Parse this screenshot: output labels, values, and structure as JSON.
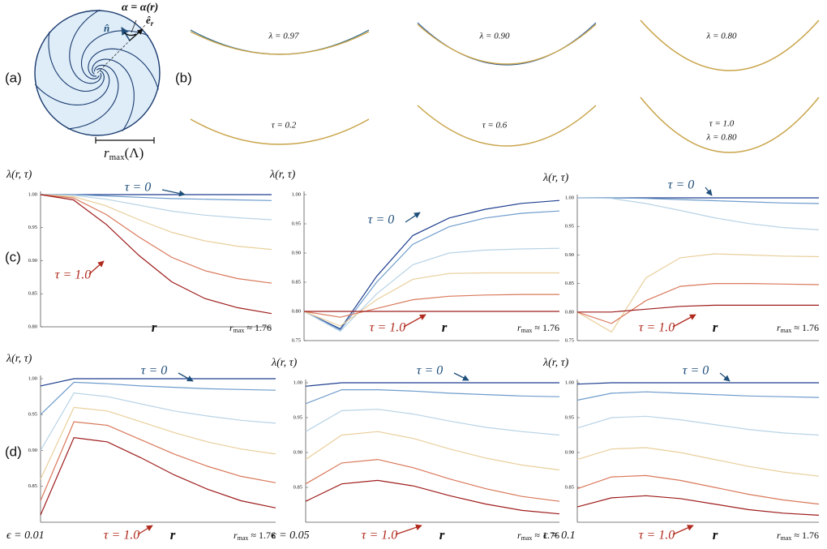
{
  "panel_labels": [
    "(a)",
    "(b)",
    "(c)",
    "(d)"
  ],
  "diagram": {
    "alpha_label": "α = α(r)",
    "n_label": "n̂",
    "e_label": "ê",
    "e_sub": "r",
    "rmax_label": [
      "r",
      "max",
      "(Λ)"
    ]
  },
  "shapes": [
    {
      "label": "λ = 0.97"
    },
    {
      "label": "λ = 0.90"
    },
    {
      "label": "λ = 0.80"
    },
    {
      "label": "τ = 0.2"
    },
    {
      "label": "τ = 0.6"
    },
    {
      "label": "τ = 1.0"
    },
    {
      "label": "λ = 0.80"
    }
  ],
  "chart_data": [
    {
      "type": "line",
      "ylabel": "λ(r, τ)",
      "x_label": "r",
      "xmax_label": [
        "r",
        "max",
        " ≈ 1.76"
      ],
      "x": [
        0,
        0.25,
        0.5,
        0.75,
        1.0,
        1.25,
        1.5,
        1.76
      ],
      "xlim": [
        0,
        1.76
      ],
      "ylim": [
        0.8,
        1.0
      ],
      "yticks": [
        {
          "value": 0.8,
          "label": "0.80"
        },
        0.85,
        {
          "value": 0.9,
          "label": "0.90"
        },
        0.95,
        {
          "value": 1,
          "label": "1.00"
        }
      ],
      "annotations": [
        {
          "text": "τ = 0",
          "color": "#1f4f7a"
        },
        {
          "text": "τ = 1.0",
          "color": "#b02a1e"
        }
      ],
      "series": [
        {
          "color": "#1f3f8f",
          "values": [
            1,
            1,
            1,
            1,
            1,
            1,
            1,
            1
          ]
        },
        {
          "color": "#6e9ccc",
          "values": [
            1,
            1,
            0.998,
            0.996,
            0.994,
            0.993,
            0.992,
            0.991
          ]
        },
        {
          "color": "#b8d3e6",
          "values": [
            1,
            0.999,
            0.993,
            0.984,
            0.975,
            0.969,
            0.965,
            0.962
          ]
        },
        {
          "color": "#e9cf9c",
          "values": [
            1,
            0.997,
            0.983,
            0.962,
            0.943,
            0.93,
            0.922,
            0.917
          ]
        },
        {
          "color": "#d9785a",
          "values": [
            1,
            0.995,
            0.97,
            0.936,
            0.905,
            0.885,
            0.873,
            0.866
          ]
        },
        {
          "color": "#9e1b1b",
          "values": [
            1,
            0.992,
            0.955,
            0.908,
            0.868,
            0.843,
            0.829,
            0.82
          ]
        }
      ]
    },
    {
      "type": "line",
      "ylabel": "λ(r, τ)",
      "x_label": "r",
      "xmax_label": [
        "r",
        "max",
        " ≈ 1.76"
      ],
      "x": [
        0,
        0.25,
        0.5,
        0.75,
        1.0,
        1.25,
        1.5,
        1.76
      ],
      "xlim": [
        0,
        1.76
      ],
      "ylim": [
        0.75,
        1.0
      ],
      "yticks": [
        0.75,
        {
          "value": 0.8,
          "label": "0.80"
        },
        0.85,
        {
          "value": 0.9,
          "label": "0.90"
        },
        0.95,
        {
          "value": 1,
          "label": "1.00"
        }
      ],
      "annotations": [
        {
          "text": "τ = 0",
          "color": "#1f4f7a"
        },
        {
          "text": "τ = 1.0",
          "color": "#b02a1e"
        }
      ],
      "series": [
        {
          "color": "#1f3f8f",
          "values": [
            0.8,
            0.77,
            0.86,
            0.93,
            0.96,
            0.975,
            0.985,
            0.99
          ]
        },
        {
          "color": "#6e9ccc",
          "values": [
            0.8,
            0.768,
            0.85,
            0.915,
            0.945,
            0.96,
            0.968,
            0.972
          ]
        },
        {
          "color": "#b8d3e6",
          "values": [
            0.8,
            0.766,
            0.83,
            0.88,
            0.9,
            0.905,
            0.907,
            0.908
          ]
        },
        {
          "color": "#e9cf9c",
          "values": [
            0.8,
            0.775,
            0.82,
            0.855,
            0.865,
            0.866,
            0.866,
            0.866
          ]
        },
        {
          "color": "#d9785a",
          "values": [
            0.8,
            0.79,
            0.805,
            0.82,
            0.826,
            0.828,
            0.829,
            0.829
          ]
        },
        {
          "color": "#9e1b1b",
          "values": [
            0.8,
            0.8,
            0.8,
            0.8,
            0.8,
            0.8,
            0.8,
            0.8
          ]
        }
      ]
    },
    {
      "type": "line",
      "ylabel": "λ(r, τ)",
      "x_label": "r",
      "xmax_label": [
        "r",
        "max",
        " ≈ 1.76"
      ],
      "x": [
        0,
        0.25,
        0.5,
        0.75,
        1.0,
        1.25,
        1.5,
        1.76
      ],
      "xlim": [
        0,
        1.76
      ],
      "ylim": [
        0.75,
        1.0
      ],
      "yticks": [
        0.75,
        {
          "value": 0.8,
          "label": "0.80"
        },
        0.85,
        {
          "value": 0.9,
          "label": "0.90"
        },
        0.95,
        {
          "value": 1,
          "label": "1.00"
        }
      ],
      "annotations": [
        {
          "text": "τ = 0",
          "color": "#1f4f7a"
        },
        {
          "text": "τ = 1.0",
          "color": "#b02a1e"
        }
      ],
      "series": [
        {
          "color": "#1f3f8f",
          "values": [
            1,
            1,
            1,
            1,
            1,
            1,
            1,
            1
          ]
        },
        {
          "color": "#6e9ccc",
          "values": [
            1,
            1,
            0.999,
            0.997,
            0.995,
            0.993,
            0.991,
            0.99
          ]
        },
        {
          "color": "#b8d3e6",
          "values": [
            1,
            0.999,
            0.99,
            0.978,
            0.965,
            0.955,
            0.948,
            0.944
          ]
        },
        {
          "color": "#e9cf9c",
          "values": [
            0.8,
            0.765,
            0.86,
            0.895,
            0.902,
            0.9,
            0.898,
            0.897
          ]
        },
        {
          "color": "#d9785a",
          "values": [
            0.8,
            0.78,
            0.82,
            0.845,
            0.85,
            0.85,
            0.849,
            0.848
          ]
        },
        {
          "color": "#9e1b1b",
          "values": [
            0.8,
            0.8,
            0.805,
            0.81,
            0.812,
            0.812,
            0.812,
            0.812
          ]
        }
      ]
    },
    {
      "type": "line",
      "ylabel": "λ(r, τ)",
      "x_label": "r",
      "xmax_label": [
        "r",
        "max",
        " ≈ 1.76"
      ],
      "epsilon_label": "ϵ = 0.01",
      "x": [
        0,
        0.25,
        0.5,
        0.75,
        1.0,
        1.25,
        1.5,
        1.76
      ],
      "xlim": [
        0,
        1.76
      ],
      "ylim": [
        0.8,
        1.0
      ],
      "yticks": [
        0.85,
        {
          "value": 0.9,
          "label": "0.90"
        },
        0.95,
        {
          "value": 1,
          "label": "1.00"
        }
      ],
      "annotations": [
        {
          "text": "τ = 0",
          "color": "#1f4f7a"
        },
        {
          "text": "τ = 1.0",
          "color": "#b02a1e"
        }
      ],
      "series": [
        {
          "color": "#1f3f8f",
          "values": [
            0.99,
            1,
            1,
            1,
            1,
            1,
            1,
            1
          ]
        },
        {
          "color": "#6e9ccc",
          "values": [
            0.95,
            0.995,
            0.993,
            0.99,
            0.988,
            0.986,
            0.985,
            0.984
          ]
        },
        {
          "color": "#b8d3e6",
          "values": [
            0.9,
            0.98,
            0.975,
            0.965,
            0.955,
            0.948,
            0.942,
            0.938
          ]
        },
        {
          "color": "#e9cf9c",
          "values": [
            0.86,
            0.96,
            0.955,
            0.94,
            0.925,
            0.912,
            0.902,
            0.895
          ]
        },
        {
          "color": "#d9785a",
          "values": [
            0.83,
            0.94,
            0.935,
            0.915,
            0.895,
            0.878,
            0.864,
            0.855
          ]
        },
        {
          "color": "#9e1b1b",
          "values": [
            0.81,
            0.918,
            0.912,
            0.89,
            0.866,
            0.846,
            0.83,
            0.82
          ]
        }
      ]
    },
    {
      "type": "line",
      "ylabel": "λ(r, τ)",
      "x_label": "r",
      "xmax_label": [
        "r",
        "max",
        " ≈ 1.76"
      ],
      "epsilon_label": "ϵ = 0.05",
      "x": [
        0,
        0.25,
        0.5,
        0.75,
        1.0,
        1.25,
        1.5,
        1.76
      ],
      "xlim": [
        0,
        1.76
      ],
      "ylim": [
        0.8,
        1.0
      ],
      "yticks": [
        0.85,
        {
          "value": 0.9,
          "label": "0.90"
        },
        0.95,
        {
          "value": 1,
          "label": "1.00"
        }
      ],
      "annotations": [
        {
          "text": "τ = 0",
          "color": "#1f4f7a"
        },
        {
          "text": "τ = 1.0",
          "color": "#b02a1e"
        }
      ],
      "series": [
        {
          "color": "#1f3f8f",
          "values": [
            0.995,
            1,
            1,
            1,
            1,
            1,
            1,
            1
          ]
        },
        {
          "color": "#6e9ccc",
          "values": [
            0.97,
            0.99,
            0.99,
            0.988,
            0.985,
            0.983,
            0.981,
            0.98
          ]
        },
        {
          "color": "#b8d3e6",
          "values": [
            0.93,
            0.96,
            0.962,
            0.955,
            0.945,
            0.936,
            0.93,
            0.925
          ]
        },
        {
          "color": "#e9cf9c",
          "values": [
            0.89,
            0.925,
            0.93,
            0.92,
            0.905,
            0.892,
            0.882,
            0.875
          ]
        },
        {
          "color": "#d9785a",
          "values": [
            0.855,
            0.885,
            0.89,
            0.878,
            0.862,
            0.848,
            0.837,
            0.83
          ]
        },
        {
          "color": "#9e1b1b",
          "values": [
            0.83,
            0.855,
            0.86,
            0.852,
            0.838,
            0.826,
            0.817,
            0.812
          ]
        }
      ]
    },
    {
      "type": "line",
      "ylabel": "λ(r, τ)",
      "x_label": "r",
      "xmax_label": [
        "r",
        "max",
        " ≈ 1.76"
      ],
      "epsilon_label": "ϵ = 0.1",
      "x": [
        0,
        0.25,
        0.5,
        0.75,
        1.0,
        1.25,
        1.5,
        1.76
      ],
      "xlim": [
        0,
        1.76
      ],
      "ylim": [
        0.8,
        1.0
      ],
      "yticks": [
        0.85,
        {
          "value": 0.9,
          "label": "0.90"
        },
        0.95,
        {
          "value": 1,
          "label": "1.00"
        }
      ],
      "annotations": [
        {
          "text": "τ = 0",
          "color": "#1f4f7a"
        },
        {
          "text": "τ = 1.0",
          "color": "#b02a1e"
        }
      ],
      "series": [
        {
          "color": "#1f3f8f",
          "values": [
            0.998,
            1,
            1,
            1,
            1,
            1,
            1,
            1
          ]
        },
        {
          "color": "#6e9ccc",
          "values": [
            0.975,
            0.985,
            0.987,
            0.985,
            0.983,
            0.981,
            0.98,
            0.979
          ]
        },
        {
          "color": "#b8d3e6",
          "values": [
            0.935,
            0.95,
            0.952,
            0.947,
            0.94,
            0.933,
            0.928,
            0.925
          ]
        },
        {
          "color": "#e9cf9c",
          "values": [
            0.89,
            0.905,
            0.907,
            0.9,
            0.89,
            0.88,
            0.872,
            0.866
          ]
        },
        {
          "color": "#d9785a",
          "values": [
            0.848,
            0.865,
            0.867,
            0.86,
            0.85,
            0.84,
            0.832,
            0.826
          ]
        },
        {
          "color": "#9e1b1b",
          "values": [
            0.822,
            0.835,
            0.838,
            0.834,
            0.826,
            0.818,
            0.813,
            0.81
          ]
        }
      ]
    }
  ]
}
